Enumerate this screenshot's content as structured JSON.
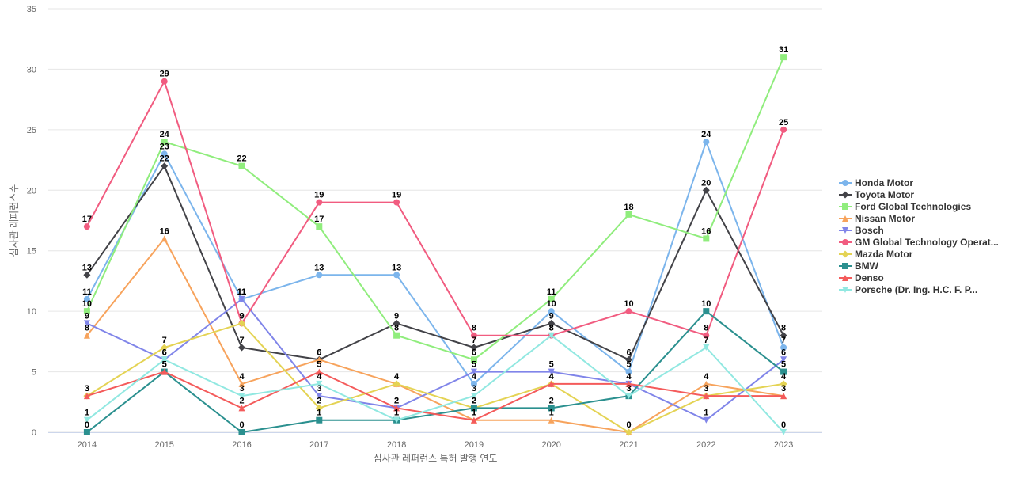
{
  "chart_data": {
    "type": "line",
    "xlabel": "심사관 레퍼런스 특허 발행 연도",
    "ylabel": "심사관 레퍼런스수",
    "ylim": [
      0,
      35
    ],
    "yticks": [
      0,
      5,
      10,
      15,
      20,
      25,
      30,
      35
    ],
    "grid": "horizontal",
    "legend_position": "right",
    "categories": [
      "2014",
      "2015",
      "2016",
      "2017",
      "2018",
      "2019",
      "2020",
      "2021",
      "2022",
      "2023"
    ],
    "series": [
      {
        "name": "Honda Motor",
        "color": "#7cb5ec",
        "marker": "circle",
        "values": [
          11,
          23,
          11,
          13,
          13,
          4,
          10,
          5,
          24,
          7
        ]
      },
      {
        "name": "Toyota Motor",
        "color": "#434348",
        "marker": "diamond",
        "values": [
          13,
          22,
          7,
          6,
          9,
          7,
          9,
          6,
          20,
          8
        ]
      },
      {
        "name": "Ford Global Technologies",
        "color": "#90ed7d",
        "marker": "square",
        "values": [
          10,
          24,
          22,
          17,
          8,
          6,
          11,
          18,
          16,
          31
        ]
      },
      {
        "name": "Nissan Motor",
        "color": "#f7a35c",
        "marker": "triangle",
        "values": [
          8,
          16,
          4,
          6,
          4,
          1,
          1,
          0,
          4,
          3
        ]
      },
      {
        "name": "Bosch",
        "color": "#8085e9",
        "marker": "triangle-down",
        "values": [
          9,
          6,
          11,
          3,
          2,
          5,
          5,
          4,
          1,
          6
        ]
      },
      {
        "name": "GM Global Technology Operat...",
        "color": "#f15c80",
        "marker": "circle",
        "values": [
          17,
          29,
          9,
          19,
          19,
          8,
          8,
          10,
          8,
          25
        ]
      },
      {
        "name": "Mazda Motor",
        "color": "#e4d354",
        "marker": "diamond",
        "values": [
          3,
          7,
          9,
          2,
          4,
          2,
          4,
          0,
          3,
          4
        ]
      },
      {
        "name": "BMW",
        "color": "#2b908f",
        "marker": "square",
        "values": [
          0,
          5,
          0,
          1,
          1,
          2,
          2,
          3,
          10,
          5
        ]
      },
      {
        "name": "Denso",
        "color": "#f45b5b",
        "marker": "triangle",
        "values": [
          3,
          5,
          2,
          5,
          2,
          1,
          4,
          4,
          3,
          3
        ]
      },
      {
        "name": "Porsche (Dr. Ing. H.C. F. P...",
        "color": "#91e8e1",
        "marker": "triangle-down",
        "values": [
          1,
          6,
          3,
          4,
          1,
          3,
          8,
          3,
          7,
          0
        ]
      }
    ]
  }
}
